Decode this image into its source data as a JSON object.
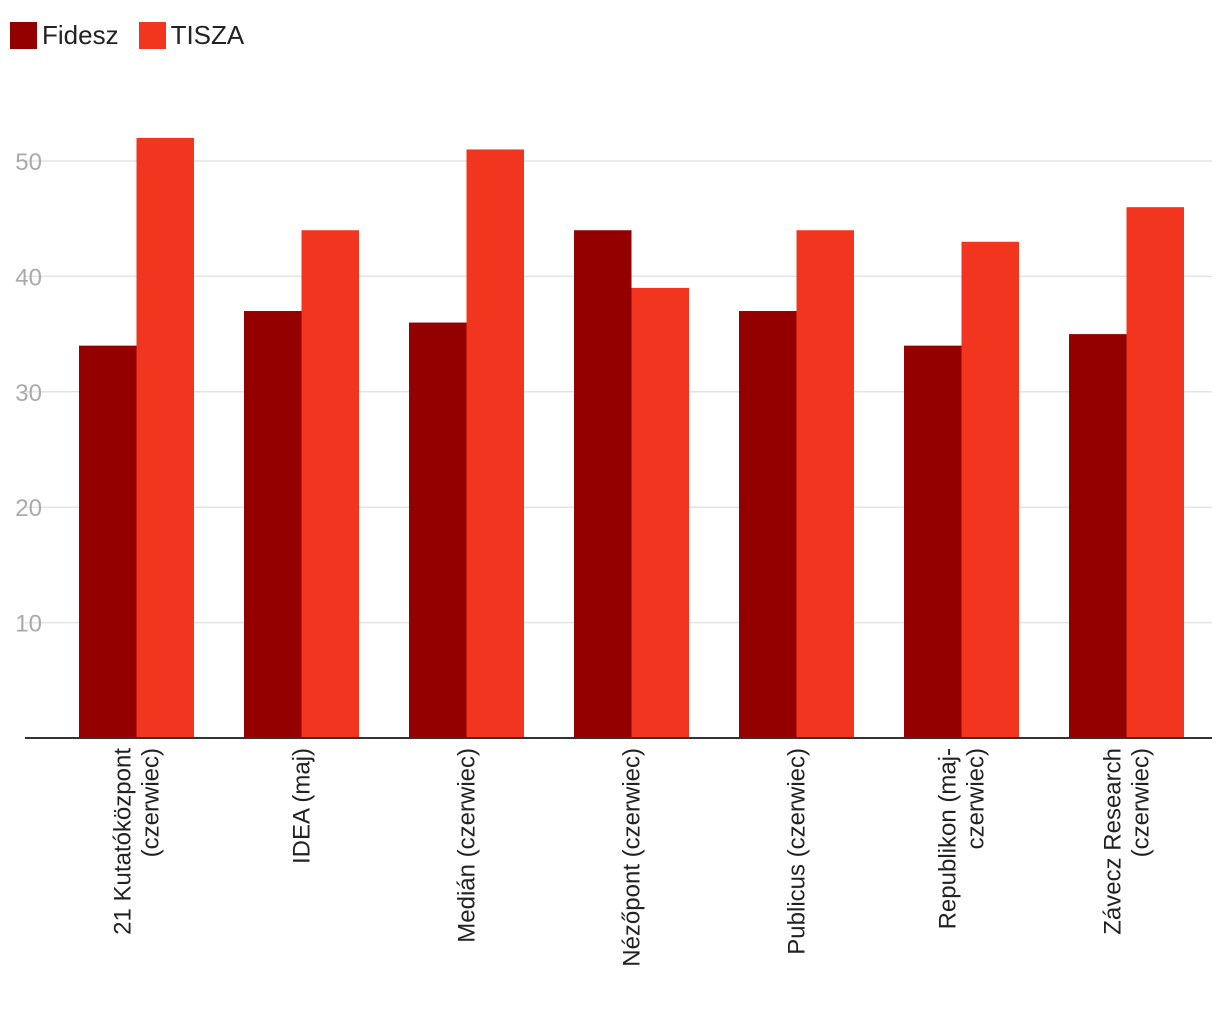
{
  "chart_data": {
    "type": "bar",
    "title": "",
    "xlabel": "",
    "ylabel": "",
    "ylim": [
      0,
      55
    ],
    "yticks": [
      10,
      20,
      30,
      40,
      50
    ],
    "grid": true,
    "legend_position": "top-left",
    "categories": [
      [
        "21 Kutatóközpont",
        "(czerwiec)"
      ],
      [
        "IDEA (maj)"
      ],
      [
        "Medián (czerwiec)"
      ],
      [
        "Nézőpont (czerwiec)"
      ],
      [
        "Publicus (czerwiec)"
      ],
      [
        "Republikon (maj-",
        "czerwiec)"
      ],
      [
        "Závecz Research",
        "(czerwiec)"
      ]
    ],
    "series": [
      {
        "name": "Fidesz",
        "color": "#940000",
        "values": [
          34,
          37,
          36,
          44,
          37,
          34,
          35
        ]
      },
      {
        "name": "TISZA",
        "color": "#f1351f",
        "values": [
          52,
          44,
          51,
          39,
          44,
          43,
          46
        ]
      }
    ]
  }
}
